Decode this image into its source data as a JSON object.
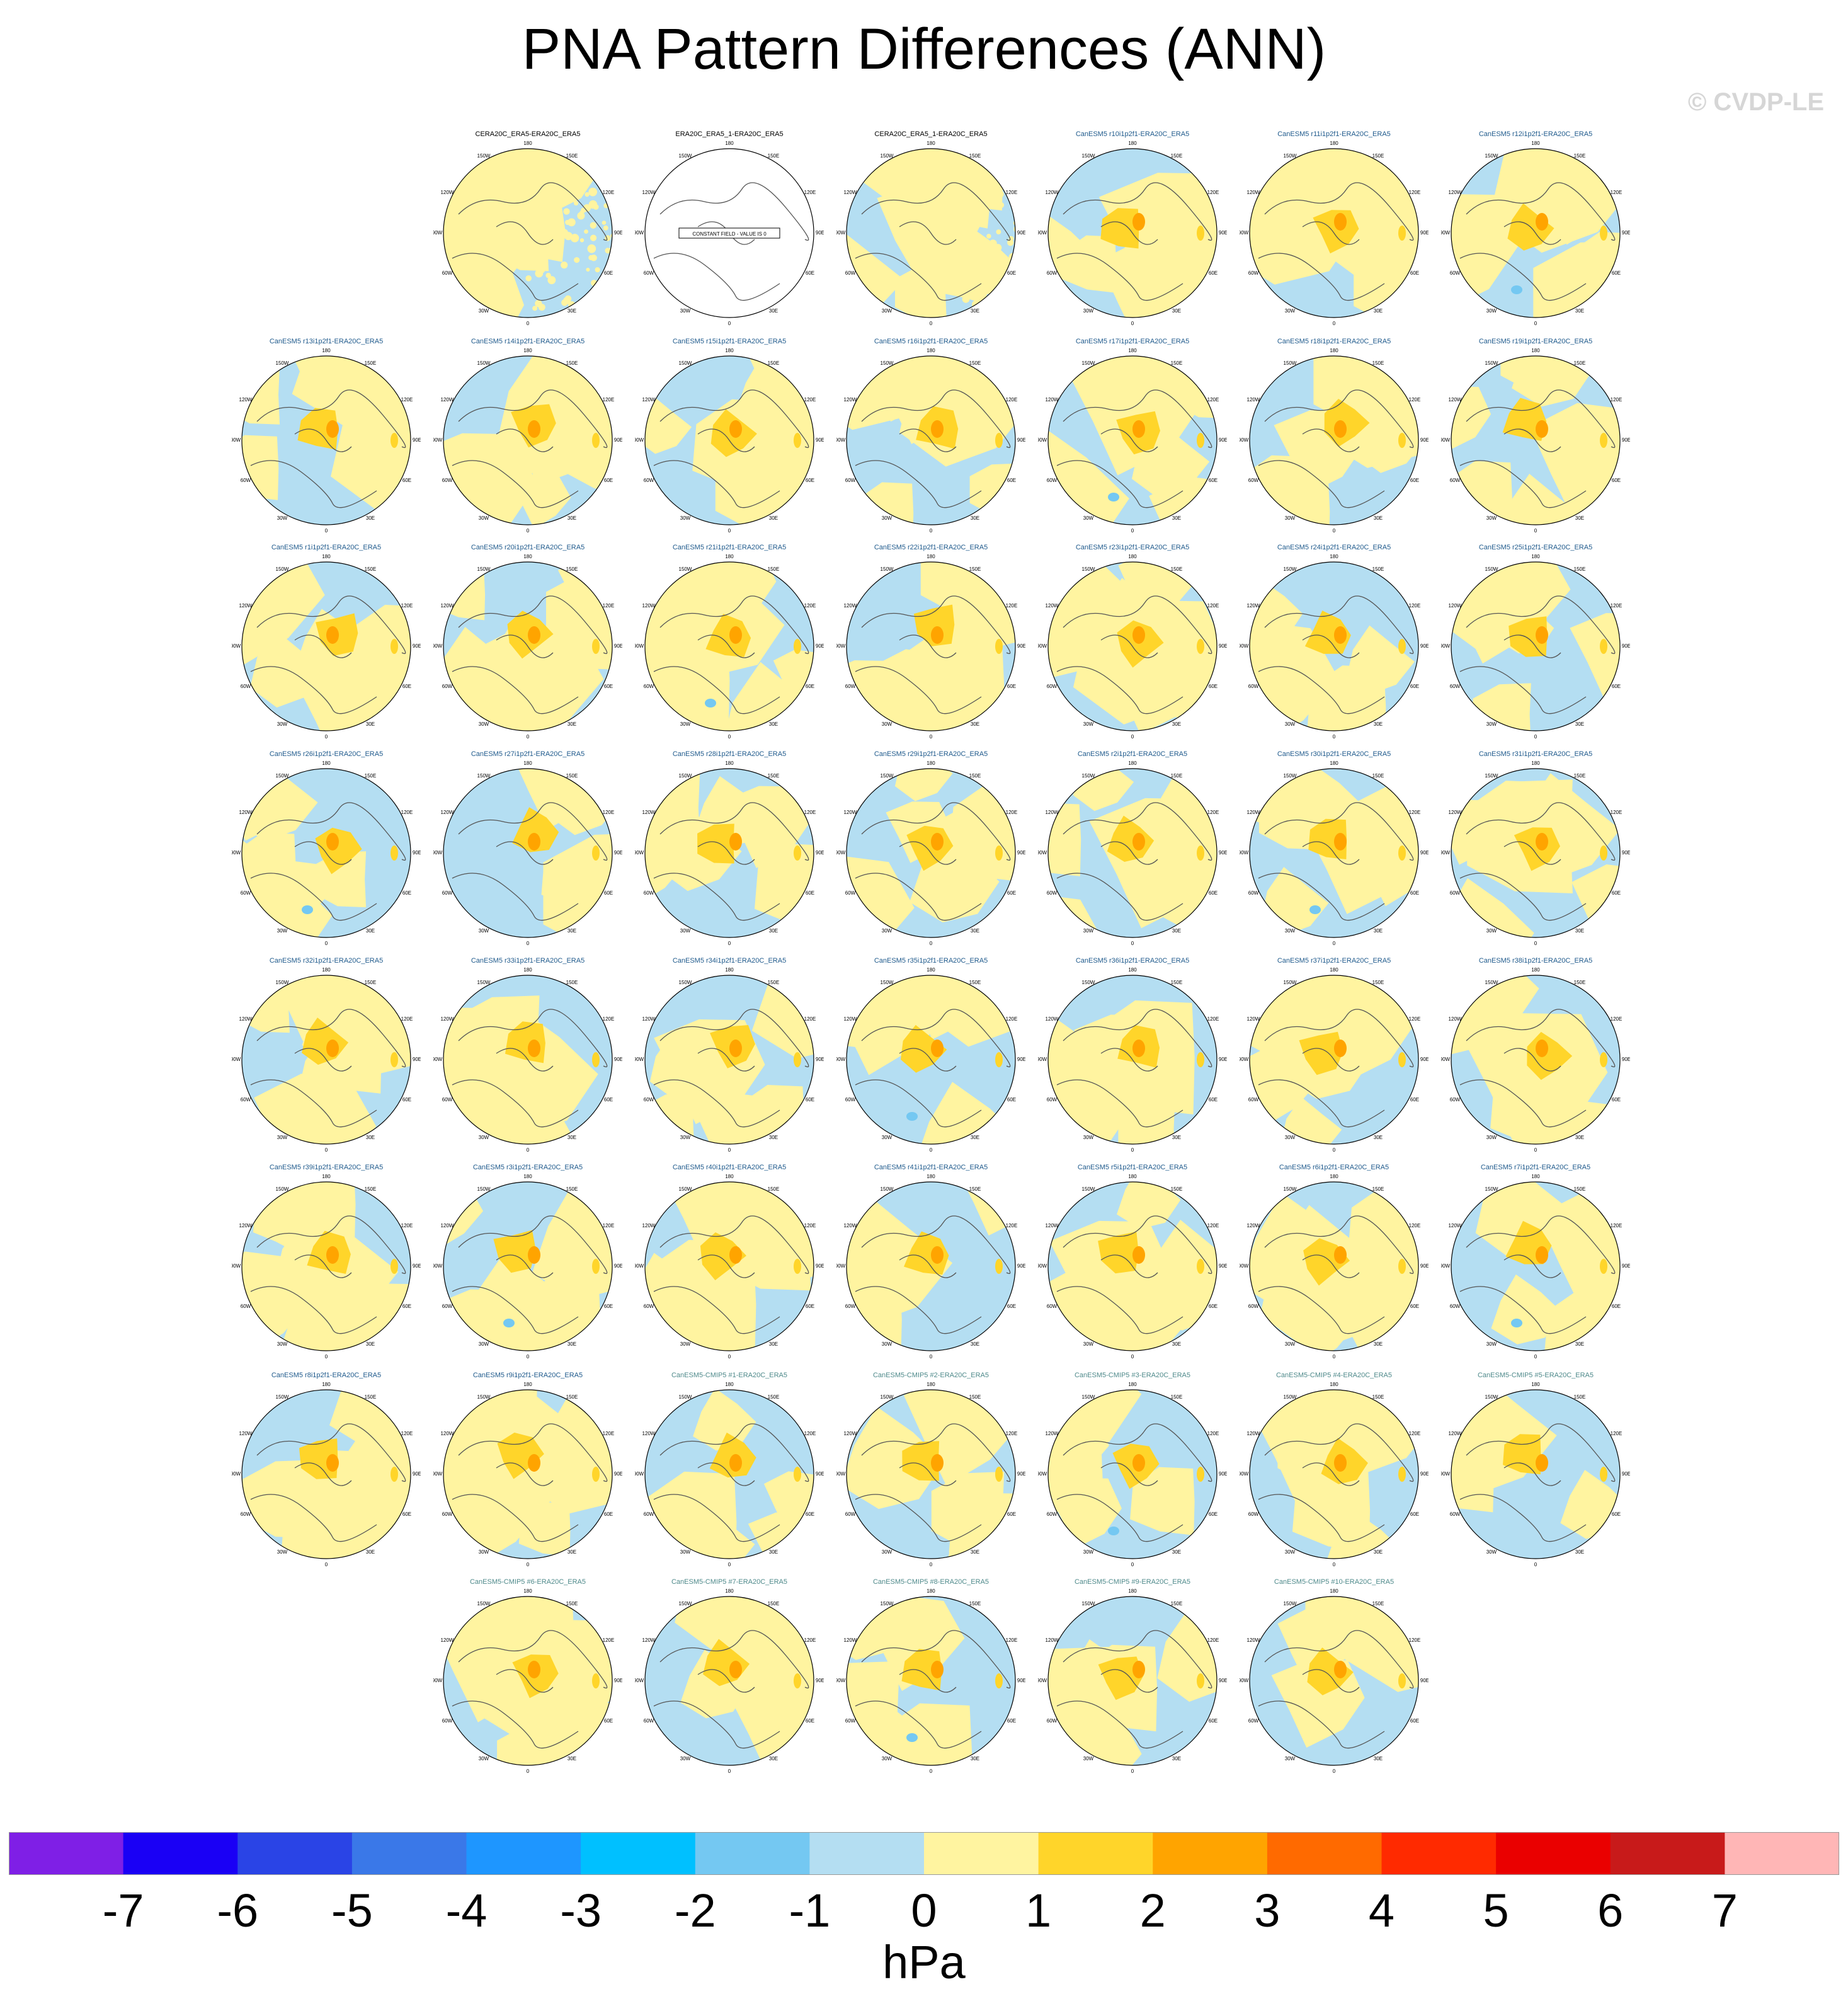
{
  "title": "PNA Pattern Differences (ANN)",
  "watermark": "© CVDP-LE",
  "map_labels": [
    "180",
    "150W",
    "150E",
    "120W",
    "120E",
    "90W",
    "90E",
    "60W",
    "60E",
    "30W",
    "30E",
    "0"
  ],
  "no_data_label": "CONSTANT FIELD - VALUE IS 0",
  "panels": [
    {
      "title": "CERA20C_ERA5-ERA20C_ERA5",
      "color": "#000000",
      "kind": "obs"
    },
    {
      "title": "ERA20C_ERA5_1-ERA20C_ERA5",
      "color": "#000000",
      "kind": "constant"
    },
    {
      "title": "CERA20C_ERA5_1-ERA20C_ERA5",
      "color": "#000000",
      "kind": "obs"
    },
    {
      "title": "CanESM5 r10i1p2f1-ERA20C_ERA5",
      "color": "#1f5a8c",
      "kind": "model"
    },
    {
      "title": "CanESM5 r11i1p2f1-ERA20C_ERA5",
      "color": "#1f5a8c",
      "kind": "model"
    },
    {
      "title": "CanESM5 r12i1p2f1-ERA20C_ERA5",
      "color": "#1f5a8c",
      "kind": "model"
    },
    {
      "title": "CanESM5 r13i1p2f1-ERA20C_ERA5",
      "color": "#1f5a8c",
      "kind": "model"
    },
    {
      "title": "CanESM5 r14i1p2f1-ERA20C_ERA5",
      "color": "#1f5a8c",
      "kind": "model"
    },
    {
      "title": "CanESM5 r15i1p2f1-ERA20C_ERA5",
      "color": "#1f5a8c",
      "kind": "model"
    },
    {
      "title": "CanESM5 r16i1p2f1-ERA20C_ERA5",
      "color": "#1f5a8c",
      "kind": "model"
    },
    {
      "title": "CanESM5 r17i1p2f1-ERA20C_ERA5",
      "color": "#1f5a8c",
      "kind": "model"
    },
    {
      "title": "CanESM5 r18i1p2f1-ERA20C_ERA5",
      "color": "#1f5a8c",
      "kind": "model"
    },
    {
      "title": "CanESM5 r19i1p2f1-ERA20C_ERA5",
      "color": "#1f5a8c",
      "kind": "model"
    },
    {
      "title": "CanESM5 r1i1p2f1-ERA20C_ERA5",
      "color": "#1f5a8c",
      "kind": "model"
    },
    {
      "title": "CanESM5 r20i1p2f1-ERA20C_ERA5",
      "color": "#1f5a8c",
      "kind": "model"
    },
    {
      "title": "CanESM5 r21i1p2f1-ERA20C_ERA5",
      "color": "#1f5a8c",
      "kind": "model"
    },
    {
      "title": "CanESM5 r22i1p2f1-ERA20C_ERA5",
      "color": "#1f5a8c",
      "kind": "model"
    },
    {
      "title": "CanESM5 r23i1p2f1-ERA20C_ERA5",
      "color": "#1f5a8c",
      "kind": "model"
    },
    {
      "title": "CanESM5 r24i1p2f1-ERA20C_ERA5",
      "color": "#1f5a8c",
      "kind": "model"
    },
    {
      "title": "CanESM5 r25i1p2f1-ERA20C_ERA5",
      "color": "#1f5a8c",
      "kind": "model"
    },
    {
      "title": "CanESM5 r26i1p2f1-ERA20C_ERA5",
      "color": "#1f5a8c",
      "kind": "model"
    },
    {
      "title": "CanESM5 r27i1p2f1-ERA20C_ERA5",
      "color": "#1f5a8c",
      "kind": "model"
    },
    {
      "title": "CanESM5 r28i1p2f1-ERA20C_ERA5",
      "color": "#1f5a8c",
      "kind": "model"
    },
    {
      "title": "CanESM5 r29i1p2f1-ERA20C_ERA5",
      "color": "#1f5a8c",
      "kind": "model"
    },
    {
      "title": "CanESM5 r2i1p2f1-ERA20C_ERA5",
      "color": "#1f5a8c",
      "kind": "model"
    },
    {
      "title": "CanESM5 r30i1p2f1-ERA20C_ERA5",
      "color": "#1f5a8c",
      "kind": "model"
    },
    {
      "title": "CanESM5 r31i1p2f1-ERA20C_ERA5",
      "color": "#1f5a8c",
      "kind": "model"
    },
    {
      "title": "CanESM5 r32i1p2f1-ERA20C_ERA5",
      "color": "#1f5a8c",
      "kind": "model"
    },
    {
      "title": "CanESM5 r33i1p2f1-ERA20C_ERA5",
      "color": "#1f5a8c",
      "kind": "model"
    },
    {
      "title": "CanESM5 r34i1p2f1-ERA20C_ERA5",
      "color": "#1f5a8c",
      "kind": "model"
    },
    {
      "title": "CanESM5 r35i1p2f1-ERA20C_ERA5",
      "color": "#1f5a8c",
      "kind": "model"
    },
    {
      "title": "CanESM5 r36i1p2f1-ERA20C_ERA5",
      "color": "#1f5a8c",
      "kind": "model"
    },
    {
      "title": "CanESM5 r37i1p2f1-ERA20C_ERA5",
      "color": "#1f5a8c",
      "kind": "model"
    },
    {
      "title": "CanESM5 r38i1p2f1-ERA20C_ERA5",
      "color": "#1f5a8c",
      "kind": "model"
    },
    {
      "title": "CanESM5 r39i1p2f1-ERA20C_ERA5",
      "color": "#1f5a8c",
      "kind": "model"
    },
    {
      "title": "CanESM5 r3i1p2f1-ERA20C_ERA5",
      "color": "#1f5a8c",
      "kind": "model"
    },
    {
      "title": "CanESM5 r40i1p2f1-ERA20C_ERA5",
      "color": "#1f5a8c",
      "kind": "model"
    },
    {
      "title": "CanESM5 r41i1p2f1-ERA20C_ERA5",
      "color": "#1f5a8c",
      "kind": "model"
    },
    {
      "title": "CanESM5 r5i1p2f1-ERA20C_ERA5",
      "color": "#1f5a8c",
      "kind": "model"
    },
    {
      "title": "CanESM5 r6i1p2f1-ERA20C_ERA5",
      "color": "#1f5a8c",
      "kind": "model"
    },
    {
      "title": "CanESM5 r7i1p2f1-ERA20C_ERA5",
      "color": "#1f5a8c",
      "kind": "model"
    },
    {
      "title": "CanESM5 r8i1p2f1-ERA20C_ERA5",
      "color": "#1f5a8c",
      "kind": "model"
    },
    {
      "title": "CanESM5 r9i1p2f1-ERA20C_ERA5",
      "color": "#1f5a8c",
      "kind": "model"
    },
    {
      "title": "CanESM5-CMIP5 #1-ERA20C_ERA5",
      "color": "#4f8a8b",
      "kind": "model"
    },
    {
      "title": "CanESM5-CMIP5 #2-ERA20C_ERA5",
      "color": "#4f8a8b",
      "kind": "model"
    },
    {
      "title": "CanESM5-CMIP5 #3-ERA20C_ERA5",
      "color": "#4f8a8b",
      "kind": "model"
    },
    {
      "title": "CanESM5-CMIP5 #4-ERA20C_ERA5",
      "color": "#4f8a8b",
      "kind": "model"
    },
    {
      "title": "CanESM5-CMIP5 #5-ERA20C_ERA5",
      "color": "#4f8a8b",
      "kind": "model"
    },
    {
      "title": "CanESM5-CMIP5 #6-ERA20C_ERA5",
      "color": "#4f8a8b",
      "kind": "model"
    },
    {
      "title": "CanESM5-CMIP5 #7-ERA20C_ERA5",
      "color": "#4f8a8b",
      "kind": "model"
    },
    {
      "title": "CanESM5-CMIP5 #8-ERA20C_ERA5",
      "color": "#4f8a8b",
      "kind": "model"
    },
    {
      "title": "CanESM5-CMIP5 #9-ERA20C_ERA5",
      "color": "#4f8a8b",
      "kind": "model"
    },
    {
      "title": "CanESM5-CMIP5 #10-ERA20C_ERA5",
      "color": "#4f8a8b",
      "kind": "model"
    }
  ],
  "colorbar": {
    "units": "hPa",
    "ticks": [
      "-7",
      "-6",
      "-5",
      "-4",
      "-3",
      "-2",
      "-1",
      "0",
      "1",
      "2",
      "3",
      "4",
      "5",
      "6",
      "7"
    ],
    "colors": [
      "#7f1fe6",
      "#1a00f5",
      "#2a44e6",
      "#3a78e8",
      "#1e96ff",
      "#00c0ff",
      "#74c8f2",
      "#b4def2",
      "#fff4a0",
      "#ffd52a",
      "#ffa400",
      "#ff6a00",
      "#ff2a00",
      "#ea0000",
      "#c81a1a",
      "#ffb6b6"
    ]
  },
  "palette": {
    "neg_light": "#b4def2",
    "pos_light": "#fff4a0",
    "pos_mid": "#ffd52a",
    "pos_strong": "#ffa400",
    "neg_mid": "#74c8f2",
    "neg_strong": "#3a78e8"
  }
}
